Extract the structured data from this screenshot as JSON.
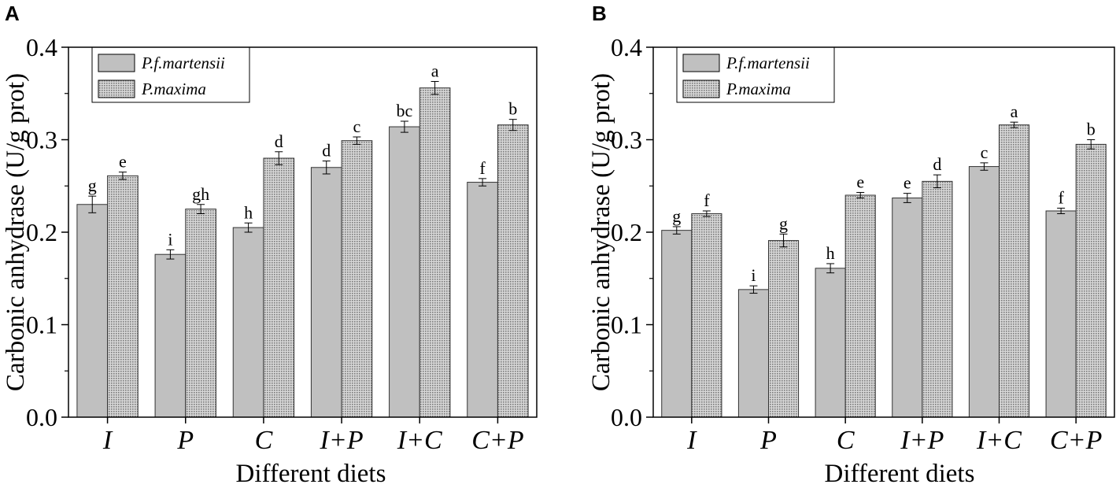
{
  "chart_data": [
    {
      "type": "bar",
      "panel_label": "A",
      "categories": [
        "I",
        "P",
        "C",
        "I+P",
        "I+C",
        "C+P"
      ],
      "series": [
        {
          "name": "P.f.martensii",
          "values": [
            0.23,
            0.176,
            0.205,
            0.27,
            0.314,
            0.254
          ],
          "errors": [
            0.009,
            0.005,
            0.005,
            0.007,
            0.006,
            0.004
          ],
          "labels": [
            "g",
            "i",
            "h",
            "d",
            "bc",
            "f"
          ],
          "color": "#c0c0c0"
        },
        {
          "name": "P.maxima",
          "values": [
            0.261,
            0.225,
            0.28,
            0.299,
            0.356,
            0.316
          ],
          "errors": [
            0.004,
            0.005,
            0.007,
            0.004,
            0.007,
            0.006
          ],
          "labels": [
            "e",
            "gh",
            "d",
            "c",
            "a",
            "b"
          ],
          "color": "#a8a8a8"
        }
      ],
      "title": "",
      "xlabel": "Different diets",
      "ylabel": "Carbonic anhydrase (U/g prot)",
      "ylim": [
        0,
        0.4
      ],
      "yticks": [
        "0.0",
        "0.1",
        "0.2",
        "0.3",
        "0.4"
      ],
      "legend_position": "top-left"
    },
    {
      "type": "bar",
      "panel_label": "B",
      "categories": [
        "I",
        "P",
        "C",
        "I+P",
        "I+C",
        "C+P"
      ],
      "series": [
        {
          "name": "P.f.martensii",
          "values": [
            0.202,
            0.138,
            0.161,
            0.237,
            0.271,
            0.223
          ],
          "errors": [
            0.004,
            0.004,
            0.005,
            0.005,
            0.004,
            0.003
          ],
          "labels": [
            "g",
            "i",
            "h",
            "e",
            "c",
            "f"
          ],
          "color": "#c0c0c0"
        },
        {
          "name": "P.maxima",
          "values": [
            0.22,
            0.191,
            0.24,
            0.255,
            0.316,
            0.295
          ],
          "errors": [
            0.003,
            0.007,
            0.003,
            0.007,
            0.003,
            0.005
          ],
          "labels": [
            "f",
            "g",
            "e",
            "d",
            "a",
            "b"
          ],
          "color": "#a8a8a8"
        }
      ],
      "title": "",
      "xlabel": "Different diets",
      "ylabel": "Carbonic anhydrase (U/g prot)",
      "ylim": [
        0,
        0.4
      ],
      "yticks": [
        "0.0",
        "0.1",
        "0.2",
        "0.3",
        "0.4"
      ],
      "legend_position": "top-left"
    }
  ]
}
